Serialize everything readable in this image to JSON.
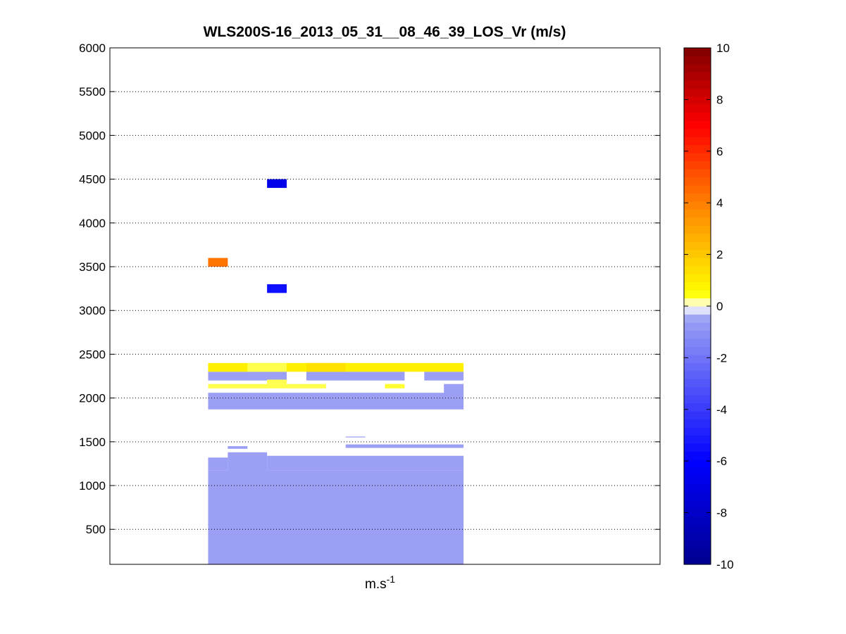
{
  "chart_data": {
    "type": "heatmap",
    "title": "WLS200S-16_2013_05_31__08_46_39_LOS_Vr (m/s)",
    "xlabel": "m.s",
    "xlabel_superscript": "-1",
    "ylabel": "",
    "ylim": [
      100,
      6000
    ],
    "yticks": [
      500,
      1000,
      1500,
      2000,
      2500,
      3000,
      3500,
      4000,
      4500,
      5000,
      5500,
      6000
    ],
    "grid": "horizontal dotted",
    "colorbar": {
      "limits": [
        -10,
        10
      ],
      "ticks": [
        -10,
        -8,
        -6,
        -4,
        -2,
        0,
        2,
        4,
        6,
        8,
        10
      ],
      "colors_low_to_high": [
        "#00008f",
        "#0000ff",
        "#9ba0f4",
        "#ffffff",
        "#ffff00",
        "#ff8000",
        "#ff0000",
        "#800000"
      ]
    },
    "columns": 18,
    "cells": [
      {
        "col0": 5,
        "col1": 18,
        "y0": 100,
        "y1": 1170,
        "v": -0.5
      },
      {
        "col0": 5,
        "col1": 6,
        "y0": 1170,
        "y1": 1320,
        "v": -0.5
      },
      {
        "col0": 6,
        "col1": 8,
        "y0": 1100,
        "y1": 1380,
        "v": -0.5
      },
      {
        "col0": 8,
        "col1": 18,
        "y0": 1170,
        "y1": 1340,
        "v": -0.5
      },
      {
        "col0": 6,
        "col1": 7,
        "y0": 1420,
        "y1": 1450,
        "v": -0.5
      },
      {
        "col0": 12,
        "col1": 13,
        "y0": 1550,
        "y1": 1560,
        "v": -0.5
      },
      {
        "col0": 12,
        "col1": 18,
        "y0": 1430,
        "y1": 1470,
        "v": -0.5
      },
      {
        "col0": 5,
        "col1": 18,
        "y0": 1870,
        "y1": 2060,
        "v": -0.5
      },
      {
        "col0": 5,
        "col1": 9,
        "y0": 2200,
        "y1": 2300,
        "v": -0.5
      },
      {
        "col0": 10,
        "col1": 15,
        "y0": 2200,
        "y1": 2300,
        "v": -0.5
      },
      {
        "col0": 16,
        "col1": 18,
        "y0": 2200,
        "y1": 2300,
        "v": -0.5
      },
      {
        "col0": 17,
        "col1": 18,
        "y0": 2050,
        "y1": 2160,
        "v": -0.5
      },
      {
        "col0": 5,
        "col1": 18,
        "y0": 2300,
        "y1": 2400,
        "v": 0.9
      },
      {
        "col0": 7,
        "col1": 9,
        "y0": 2300,
        "y1": 2400,
        "v": 0.35
      },
      {
        "col0": 10,
        "col1": 12,
        "y0": 2300,
        "y1": 2400,
        "v": 1.3
      },
      {
        "col0": 5,
        "col1": 11,
        "y0": 2110,
        "y1": 2160,
        "v": 0.35
      },
      {
        "col0": 14,
        "col1": 15,
        "y0": 2110,
        "y1": 2160,
        "v": 0.4
      },
      {
        "col0": 8,
        "col1": 9,
        "y0": 2160,
        "y1": 2210,
        "v": 0.35
      },
      {
        "col0": 8,
        "col1": 9,
        "y0": 3200,
        "y1": 3300,
        "v": -5.5
      },
      {
        "col0": 5,
        "col1": 6,
        "y0": 3500,
        "y1": 3600,
        "v": 4.3
      },
      {
        "col0": 8,
        "col1": 9,
        "y0": 4400,
        "y1": 4500,
        "v": -6.8
      }
    ]
  }
}
